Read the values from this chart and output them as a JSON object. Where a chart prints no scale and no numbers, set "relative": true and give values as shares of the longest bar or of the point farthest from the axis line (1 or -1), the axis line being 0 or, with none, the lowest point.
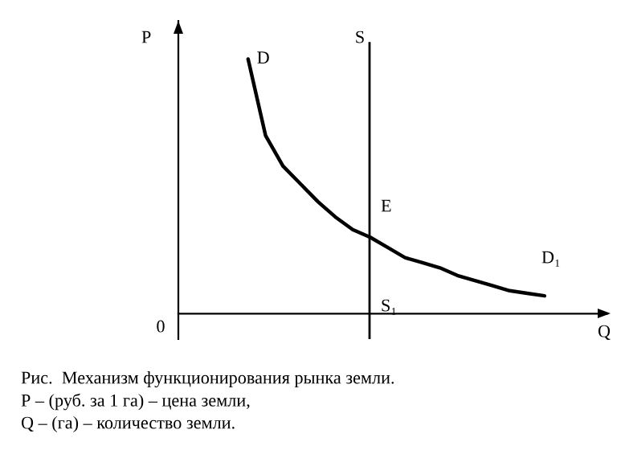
{
  "chart_data": {
    "type": "line",
    "relative": true,
    "xlabel": "Q",
    "ylabel": "P",
    "categories": [
      null,
      null,
      null,
      null,
      null,
      null,
      null,
      null,
      null,
      null,
      null,
      null,
      null,
      null,
      null,
      null,
      null,
      null,
      null,
      null,
      null,
      null,
      null,
      null,
      null
    ],
    "series": [
      {
        "name": "D",
        "color": "#000000",
        "values": [
          null,
          null,
          null,
          null,
          1.0,
          0.7,
          0.58,
          0.51,
          0.44,
          0.38,
          0.33,
          0.3,
          0.26,
          0.22,
          0.2,
          0.18,
          0.15,
          0.13,
          0.11,
          0.09,
          0.08,
          0.07,
          null,
          null,
          null
        ]
      }
    ],
    "annotations": [
      "S",
      "0",
      "E",
      "D₁",
      "S₁",
      "Рис.  Механизм функционирования рынка земли.",
      "Р – (руб. за 1 га) – цена земли,",
      "Q – (га) – количество земли."
    ]
  }
}
